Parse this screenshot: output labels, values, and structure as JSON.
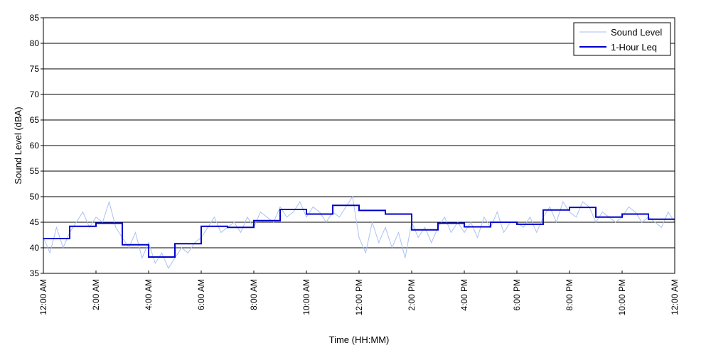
{
  "chart_data": {
    "type": "line",
    "xlabel": "Time (HH:MM)",
    "ylabel": "Sound Level (dBA)",
    "ylim": [
      35,
      85
    ],
    "xlim_hours": [
      0,
      24
    ],
    "yticks": [
      35,
      40,
      45,
      50,
      55,
      60,
      65,
      70,
      75,
      80,
      85
    ],
    "xticks": [
      {
        "hour": 0,
        "label": "12:00 AM"
      },
      {
        "hour": 2,
        "label": "2:00 AM"
      },
      {
        "hour": 4,
        "label": "4:00 AM"
      },
      {
        "hour": 6,
        "label": "6:00 AM"
      },
      {
        "hour": 8,
        "label": "8:00 AM"
      },
      {
        "hour": 10,
        "label": "10:00 AM"
      },
      {
        "hour": 12,
        "label": "12:00 PM"
      },
      {
        "hour": 14,
        "label": "2:00 PM"
      },
      {
        "hour": 16,
        "label": "4:00 PM"
      },
      {
        "hour": 18,
        "label": "6:00 PM"
      },
      {
        "hour": 20,
        "label": "8:00 PM"
      },
      {
        "hour": 22,
        "label": "10:00 PM"
      },
      {
        "hour": 24,
        "label": "12:00 AM"
      }
    ],
    "grid": "horizontal",
    "legend_position": "top-right",
    "series": [
      {
        "name": "Sound Level",
        "color": "#a9c2f2",
        "x_hours": [
          0,
          0.25,
          0.5,
          0.75,
          1,
          1.25,
          1.5,
          1.75,
          2,
          2.25,
          2.5,
          2.75,
          3,
          3.25,
          3.5,
          3.75,
          4,
          4.25,
          4.5,
          4.75,
          5,
          5.25,
          5.5,
          5.75,
          6,
          6.25,
          6.5,
          6.75,
          7,
          7.25,
          7.5,
          7.75,
          8,
          8.25,
          8.5,
          8.75,
          9,
          9.25,
          9.5,
          9.75,
          10,
          10.25,
          10.5,
          10.75,
          11,
          11.25,
          11.5,
          11.75,
          12,
          12.25,
          12.5,
          12.75,
          13,
          13.25,
          13.5,
          13.75,
          14,
          14.25,
          14.5,
          14.75,
          15,
          15.25,
          15.5,
          15.75,
          16,
          16.25,
          16.5,
          16.75,
          17,
          17.25,
          17.5,
          17.75,
          18,
          18.25,
          18.5,
          18.75,
          19,
          19.25,
          19.5,
          19.75,
          20,
          20.25,
          20.5,
          20.75,
          21,
          21.25,
          21.5,
          21.75,
          22,
          22.25,
          22.5,
          22.75,
          23,
          23.25,
          23.5,
          23.75,
          24
        ],
        "values": [
          42,
          39,
          44,
          40,
          43,
          45,
          47,
          44,
          46,
          45,
          49,
          44,
          42,
          40,
          43,
          38,
          41,
          37,
          39,
          36,
          38,
          40,
          39,
          41,
          42,
          44,
          46,
          43,
          44,
          45,
          43,
          46,
          44,
          47,
          46,
          45,
          48,
          46,
          47,
          49,
          46,
          48,
          47,
          45,
          47,
          46,
          48,
          50,
          42,
          39,
          45,
          41,
          44,
          40,
          43,
          38,
          45,
          42,
          44,
          41,
          44,
          46,
          43,
          45,
          43,
          45,
          42,
          46,
          44,
          47,
          43,
          45,
          45,
          44,
          46,
          43,
          46,
          48,
          45,
          49,
          47,
          46,
          49,
          48,
          45,
          47,
          46,
          45,
          46,
          48,
          47,
          45,
          46,
          45,
          44,
          47,
          45
        ]
      },
      {
        "name": "1-Hour Leq",
        "color": "#0000cc",
        "hourly_values": [
          41.8,
          44.2,
          44.8,
          40.6,
          38.2,
          40.8,
          44.2,
          44.0,
          45.3,
          47.5,
          46.6,
          48.3,
          47.3,
          46.6,
          43.5,
          44.8,
          44.1,
          45.0,
          44.6,
          47.4,
          47.9,
          46.0,
          46.6,
          45.6
        ]
      }
    ]
  }
}
